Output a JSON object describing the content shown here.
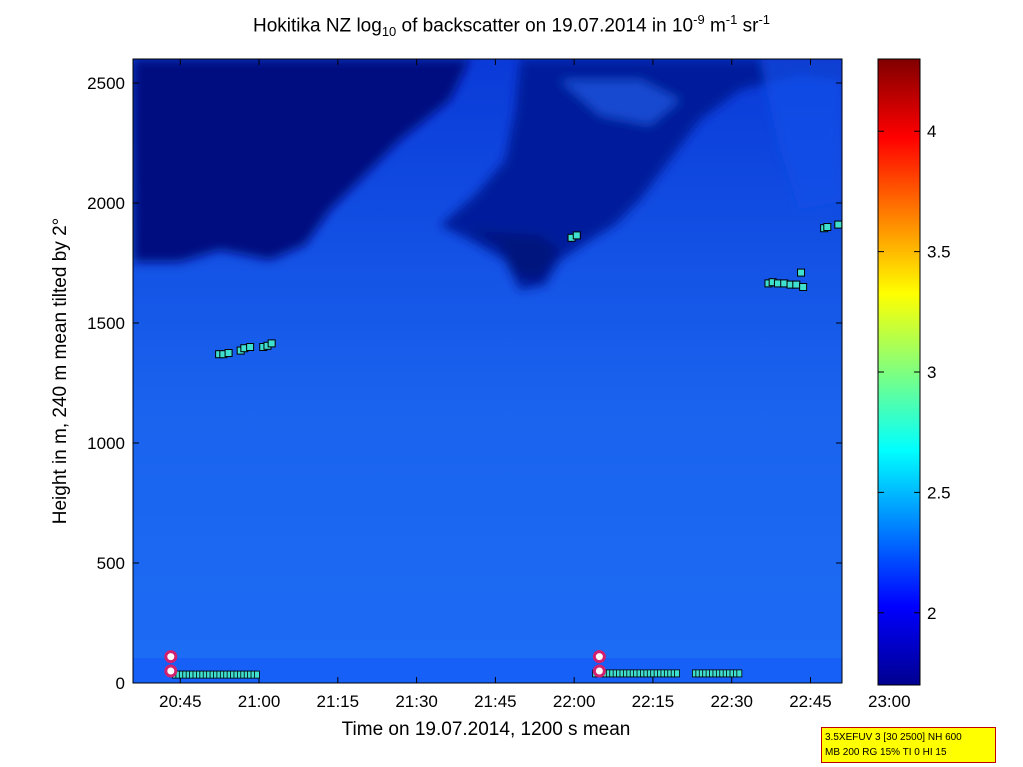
{
  "chart_data": {
    "type": "heatmap",
    "title": {
      "prefix": "Hokitika NZ log",
      "sub": "10",
      "mid": " of backscatter on 19.07.2014 in 10",
      "sup1": "-9",
      "mid2": " m",
      "sup2": "-1",
      "mid3": " sr",
      "sup3": "-1"
    },
    "xlabel": "Time on 19.07.2014, 1200 s mean",
    "ylabel": "Height in m, 240 m mean tilted by 2°",
    "x_ticks": [
      "20:45",
      "21:00",
      "21:15",
      "21:30",
      "21:45",
      "22:00",
      "22:15",
      "22:30",
      "22:45",
      "23:00"
    ],
    "y_ticks": [
      "0",
      "500",
      "1000",
      "1500",
      "2000",
      "2500"
    ],
    "xlim_minutes_after_2045": [
      -9,
      126
    ],
    "ylim": [
      0,
      2600
    ],
    "color_scale": {
      "min": 1.7,
      "max": 4.3,
      "ticks": [
        "2",
        "2.5",
        "3",
        "3.5",
        "4"
      ],
      "tick_values": [
        2,
        2.5,
        3,
        3.5,
        4
      ]
    },
    "cloud_base_markers": [
      {
        "t": 7.4,
        "h": 1370
      },
      {
        "t": 8.2,
        "h": 1370
      },
      {
        "t": 9.2,
        "h": 1375
      },
      {
        "t": 11.5,
        "h": 1385
      },
      {
        "t": 12.2,
        "h": 1395
      },
      {
        "t": 13.3,
        "h": 1400
      },
      {
        "t": 15.8,
        "h": 1400
      },
      {
        "t": 16.6,
        "h": 1405
      },
      {
        "t": 17.4,
        "h": 1415
      },
      {
        "t": 74.5,
        "h": 1855
      },
      {
        "t": 75.5,
        "h": 1865
      },
      {
        "t": 112.0,
        "h": 1665
      },
      {
        "t": 112.8,
        "h": 1670
      },
      {
        "t": 113.8,
        "h": 1665
      },
      {
        "t": 115.0,
        "h": 1665
      },
      {
        "t": 116.2,
        "h": 1660
      },
      {
        "t": 117.3,
        "h": 1660
      },
      {
        "t": 118.2,
        "h": 1710
      },
      {
        "t": 118.6,
        "h": 1650
      },
      {
        "t": 122.6,
        "h": 1895
      },
      {
        "t": 123.2,
        "h": 1900
      },
      {
        "t": 125.3,
        "h": 1910
      }
    ],
    "low_markers": [
      {
        "t_start": -1,
        "t_end": 15,
        "h": 35
      },
      {
        "t_start": 79,
        "t_end": 95,
        "h": 40
      },
      {
        "t_start": 98,
        "t_end": 107,
        "h": 40
      }
    ],
    "layer_circles": [
      {
        "t": -1.8,
        "h": 110
      },
      {
        "t": -1.8,
        "h": 50
      },
      {
        "t": 79.8,
        "h": 110
      },
      {
        "t": 79.8,
        "h": 50
      }
    ],
    "colors": {
      "low_layer": "#1660f8",
      "marker_fill": "#40e0d0",
      "circle_ring": "#d02070"
    }
  },
  "info_box": {
    "line1": "3.5XEFUV 3 [30 2500] NH 600",
    "line2": "MB 200 RG 15% TI 0 HI 15"
  }
}
